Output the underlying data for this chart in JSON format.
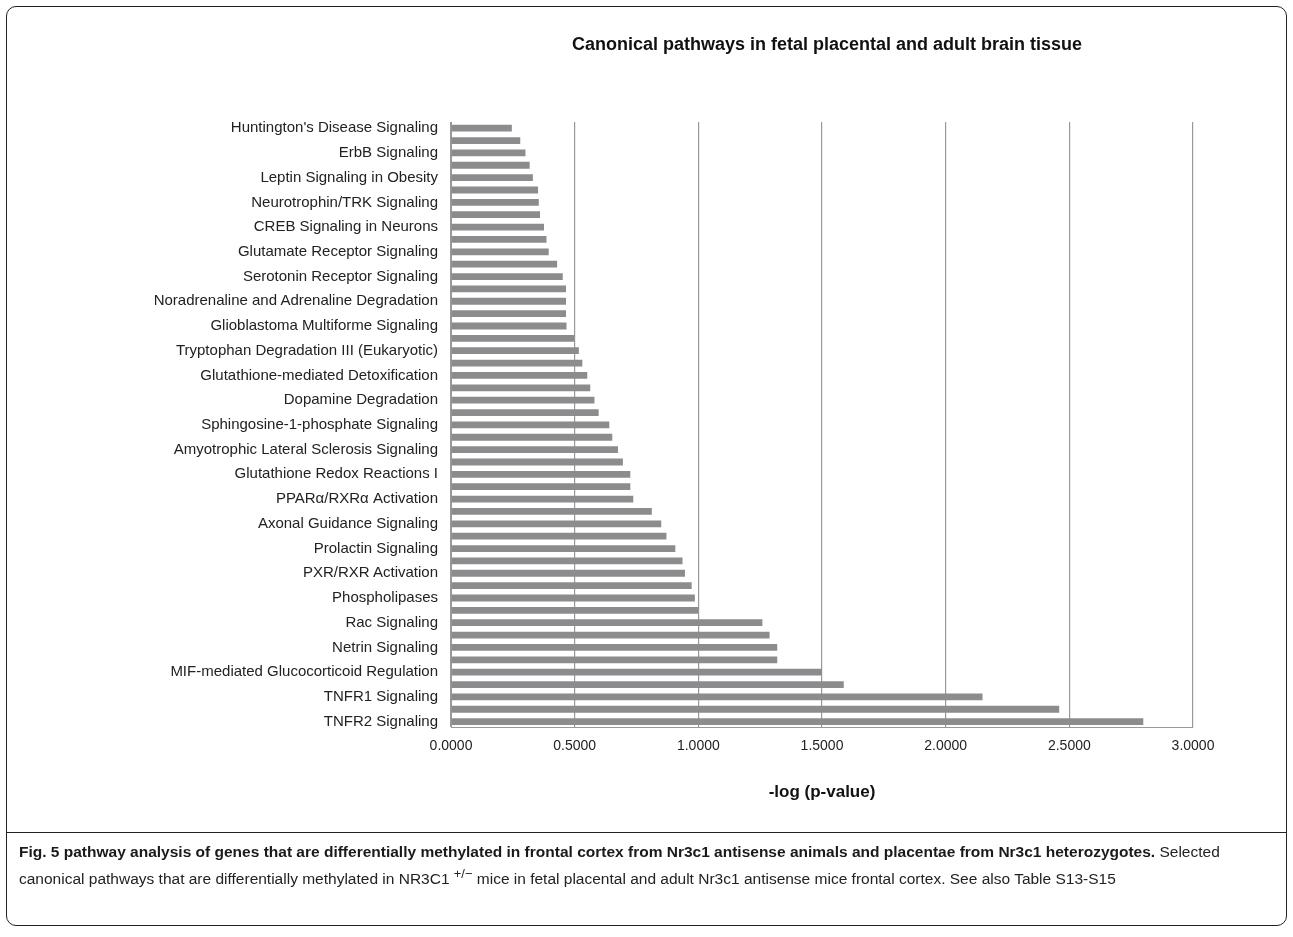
{
  "chart_data": {
    "type": "bar",
    "orientation": "horizontal",
    "title": "Canonical pathways in fetal placental and adult brain tissue",
    "xlabel": "-log (p-value)",
    "categories": [
      "Huntington's Disease Signaling",
      null,
      "ErbB Signaling",
      null,
      "Leptin Signaling in Obesity",
      null,
      "Neurotrophin/TRK Signaling",
      null,
      "CREB Signaling in Neurons",
      null,
      "Glutamate Receptor Signaling",
      null,
      "Serotonin Receptor Signaling",
      null,
      "Noradrenaline and Adrenaline Degradation",
      null,
      "Glioblastoma Multiforme Signaling",
      null,
      "Tryptophan Degradation III (Eukaryotic)",
      null,
      "Glutathione-mediated Detoxification",
      null,
      "Dopamine Degradation",
      null,
      "Sphingosine-1-phosphate Signaling",
      null,
      "Amyotrophic Lateral Sclerosis Signaling",
      null,
      "Glutathione Redox Reactions I",
      null,
      "PPARα/RXRα Activation",
      null,
      "Axonal Guidance Signaling",
      null,
      "Prolactin Signaling",
      null,
      "PXR/RXR Activation",
      null,
      "Phospholipases",
      null,
      "Rac Signaling",
      null,
      "Netrin Signaling",
      null,
      "MIF-mediated Glucocorticoid Regulation",
      null,
      "TNFR1 Signaling",
      null,
      "TNFR2 Signaling"
    ],
    "values": [
      0.246,
      0.28,
      0.301,
      0.318,
      0.331,
      0.352,
      0.355,
      0.36,
      0.376,
      0.386,
      0.395,
      0.429,
      0.452,
      0.465,
      0.465,
      0.465,
      0.467,
      0.499,
      0.517,
      0.531,
      0.551,
      0.563,
      0.58,
      0.597,
      0.64,
      0.652,
      0.675,
      0.695,
      0.725,
      0.725,
      0.737,
      0.812,
      0.85,
      0.871,
      0.907,
      0.936,
      0.946,
      0.973,
      0.986,
      1.0,
      1.259,
      1.288,
      1.319,
      1.319,
      1.5,
      1.588,
      2.149,
      2.459,
      2.799
    ],
    "color": "#8c8c8e",
    "xlim": [
      0,
      3
    ],
    "xticks": [
      {
        "value": 0,
        "label": "0.0000"
      },
      {
        "value": 0.5,
        "label": "0.5000"
      },
      {
        "value": 1,
        "label": "1.0000"
      },
      {
        "value": 1.5,
        "label": "1.5000"
      },
      {
        "value": 2,
        "label": "2.0000"
      },
      {
        "value": 2.5,
        "label": "2.5000"
      },
      {
        "value": 3,
        "label": "3.0000"
      }
    ],
    "grid": "x",
    "annotations": [
      "Fig. 5 pathway analysis of genes that are differentially methylated in frontal cortex from Nr3c1 antisense animals and placentae from Nr3c1 heterozygotes.",
      "Selected canonical pathways that are differentially methylated in NR3C1 $^{+/−}$ mice in fetal placental and adult Nr3c1 antisense mice frontal cortex. See also Table S13-S15"
    ]
  }
}
